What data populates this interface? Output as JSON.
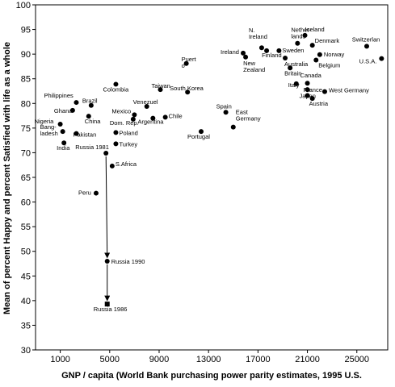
{
  "chart_data": {
    "type": "scatter",
    "xlabel": "GNP  / capita (World Bank purchasing power parity estimates, 1995 U.S.",
    "ylabel": "Mean of percent Happy and percent Satisfied with life as a whole",
    "xlim": [
      -1000,
      27500
    ],
    "ylim": [
      30,
      100
    ],
    "xticks": [
      1000,
      5000,
      9000,
      13000,
      17000,
      21000,
      25000
    ],
    "xtick_labels": [
      "1000",
      "5000",
      "9000",
      "13000",
      "17000",
      "21000",
      "25000"
    ],
    "yticks": [
      30,
      35,
      40,
      45,
      50,
      55,
      60,
      65,
      70,
      75,
      80,
      85,
      90,
      95,
      100
    ],
    "grid": false,
    "legend": "none",
    "series": [
      {
        "points": [
          {
            "label": "Iceland",
            "x": 20800,
            "y": 93.8,
            "marker": "filled"
          },
          {
            "label": "Nether-\nlands",
            "x": 20200,
            "y": 92.2,
            "marker": "filled"
          },
          {
            "label": "Denmark",
            "x": 21400,
            "y": 91.8,
            "marker": "filled"
          },
          {
            "label": "Switzerlan",
            "x": 25800,
            "y": 91.6,
            "marker": "filled"
          },
          {
            "label": "N.\nIreland",
            "x": 17300,
            "y": 91.3,
            "marker": "filled"
          },
          {
            "label": "Finland",
            "x": 17700,
            "y": 90.7,
            "marker": "filled"
          },
          {
            "label": "Sweden",
            "x": 18700,
            "y": 90.7,
            "marker": "filled"
          },
          {
            "label": "Ireland",
            "x": 15800,
            "y": 90.2,
            "marker": "filled"
          },
          {
            "label": "Norway",
            "x": 22000,
            "y": 89.9,
            "marker": "filled"
          },
          {
            "label": "U.S.A.",
            "x": 27000,
            "y": 89.1,
            "marker": "filled"
          },
          {
            "label": "Australia",
            "x": 19200,
            "y": 89.2,
            "marker": "filled"
          },
          {
            "label": "Belgium",
            "x": 21700,
            "y": 88.8,
            "marker": "filled"
          },
          {
            "label": "New\nZealand",
            "x": 16000,
            "y": 89.4,
            "marker": "filled"
          },
          {
            "label": "Puert\no",
            "x": 11200,
            "y": 88.1,
            "marker": "filled"
          },
          {
            "label": "Britain",
            "x": 19600,
            "y": 87.2,
            "marker": "filled"
          },
          {
            "label": "Canada",
            "x": 21000,
            "y": 84.1,
            "marker": "filled"
          },
          {
            "label": "Italy",
            "x": 20100,
            "y": 84.0,
            "marker": "filled"
          },
          {
            "label": "France",
            "x": 21000,
            "y": 82.8,
            "marker": "filled"
          },
          {
            "label": "West Germany",
            "x": 22400,
            "y": 82.4,
            "marker": "filled"
          },
          {
            "label": "Japan",
            "x": 21000,
            "y": 81.6,
            "marker": "filled"
          },
          {
            "label": "Austria",
            "x": 21400,
            "y": 81.0,
            "marker": "filled"
          },
          {
            "label": "Colombia",
            "x": 5500,
            "y": 83.9,
            "marker": "filled"
          },
          {
            "label": "Taiwan",
            "x": 9100,
            "y": 82.8,
            "marker": "filled"
          },
          {
            "label": "South Korea",
            "x": 11300,
            "y": 82.3,
            "marker": "filled"
          },
          {
            "label": "Spain",
            "x": 14400,
            "y": 78.2,
            "marker": "filled"
          },
          {
            "label": "East\nGermany",
            "x": 15000,
            "y": 75.2,
            "marker": "filled"
          },
          {
            "label": "Portugal",
            "x": 12400,
            "y": 74.3,
            "marker": "filled"
          },
          {
            "label": "Philippines",
            "x": 2300,
            "y": 80.2,
            "marker": "filled"
          },
          {
            "label": "Brazil",
            "x": 3500,
            "y": 79.6,
            "marker": "filled"
          },
          {
            "label": "Venezuel",
            "x": 8000,
            "y": 79.4,
            "marker": "filled"
          },
          {
            "label": "Ghana",
            "x": 2000,
            "y": 78.6,
            "marker": "filled"
          },
          {
            "label": "Mexico",
            "x": 7000,
            "y": 77.7,
            "marker": "filled"
          },
          {
            "label": "China",
            "x": 3300,
            "y": 77.4,
            "marker": "filled"
          },
          {
            "label": "Chile",
            "x": 9500,
            "y": 77.2,
            "marker": "filled"
          },
          {
            "label": "Argentina",
            "x": 8500,
            "y": 77.0,
            "marker": "filled"
          },
          {
            "label": "Dom. Rep.",
            "x": 6900,
            "y": 76.8,
            "marker": "filled"
          },
          {
            "label": "Nigeria",
            "x": 1000,
            "y": 75.8,
            "marker": "filled"
          },
          {
            "label": "Bang-\nladesh",
            "x": 1200,
            "y": 74.3,
            "marker": "filled"
          },
          {
            "label": "Pakistan",
            "x": 2300,
            "y": 73.9,
            "marker": "filled"
          },
          {
            "label": "Poland",
            "x": 5500,
            "y": 74.1,
            "marker": "filled"
          },
          {
            "label": "India",
            "x": 1300,
            "y": 72.0,
            "marker": "filled"
          },
          {
            "label": "Turkey",
            "x": 5500,
            "y": 71.8,
            "marker": "filled"
          },
          {
            "label": "Russia 1981",
            "x": 4700,
            "y": 69.9,
            "marker": "filled"
          },
          {
            "label": "S.Africa",
            "x": 5200,
            "y": 67.3,
            "marker": "filled"
          },
          {
            "label": "Peru",
            "x": 3900,
            "y": 61.8,
            "marker": "filled"
          },
          {
            "label": "Russia 1990",
            "x": 4800,
            "y": 48.0,
            "marker": "filled"
          },
          {
            "label": "Russia 1986",
            "x": 4800,
            "y": 39.3,
            "marker": "square"
          }
        ]
      }
    ],
    "annotations": [
      {
        "type": "arrow",
        "from": [
          4700,
          69.9
        ],
        "to": [
          4800,
          48.0
        ]
      },
      {
        "type": "arrow",
        "from": [
          4800,
          48.0
        ],
        "to": [
          4800,
          39.3
        ]
      }
    ]
  }
}
